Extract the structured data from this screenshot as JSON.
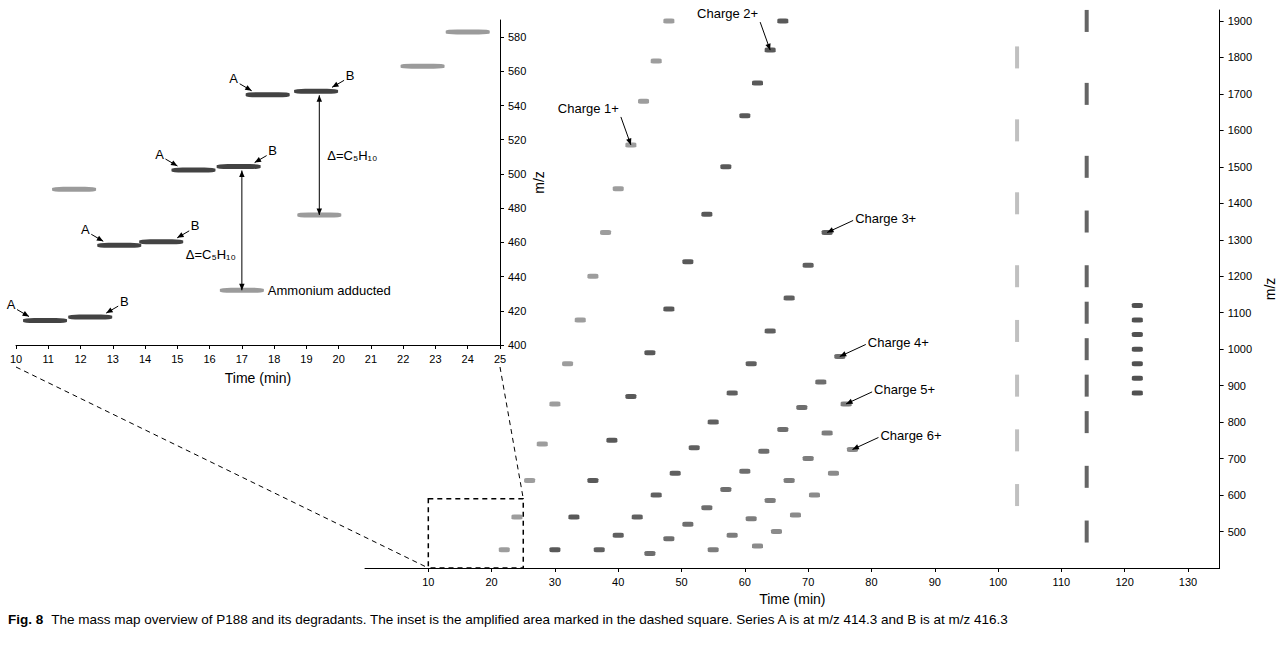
{
  "caption": {
    "label": "Fig. 8",
    "text": "The mass map overview of P188 and its degradants. The inset is the amplified area marked in the dashed square. Series A is at m/z 414.3 and B is at m/z 416.3"
  },
  "chart_data": [
    {
      "type": "scatter",
      "xlabel": "Time (min)",
      "ylabel": "m/z",
      "xlim": [
        0,
        135
      ],
      "xticks": [
        10,
        20,
        30,
        40,
        50,
        60,
        70,
        80,
        90,
        100,
        110,
        120,
        130
      ],
      "ylim": [
        400,
        1930
      ],
      "yticks": [
        500,
        600,
        700,
        800,
        900,
        1000,
        1100,
        1200,
        1300,
        1400,
        1500,
        1600,
        1700,
        1800,
        1900
      ],
      "grid": false,
      "series": [
        {
          "color": "#8c8c8c",
          "marker": "dash",
          "x": [
            22,
            24,
            26,
            28,
            30,
            32,
            34,
            36,
            38,
            40,
            42,
            44,
            46,
            48
          ],
          "values": [
            450,
            540,
            640,
            740,
            850,
            960,
            1080,
            1200,
            1320,
            1440,
            1560,
            1680,
            1790,
            1900
          ]
        },
        {
          "color": "#3c3c3c",
          "marker": "dash",
          "x": [
            30,
            33,
            36,
            39,
            42,
            45,
            48,
            51,
            54,
            57,
            60,
            62,
            64,
            66
          ],
          "values": [
            450,
            540,
            640,
            750,
            870,
            990,
            1110,
            1240,
            1370,
            1500,
            1640,
            1730,
            1820,
            1900
          ]
        },
        {
          "color": "#444444",
          "marker": "dash",
          "x": [
            37,
            40,
            43,
            46,
            49,
            52,
            55,
            58,
            61,
            64,
            67,
            70,
            73
          ],
          "values": [
            450,
            490,
            540,
            600,
            660,
            730,
            800,
            880,
            960,
            1050,
            1140,
            1230,
            1320
          ]
        },
        {
          "color": "#555555",
          "marker": "dash",
          "x": [
            45,
            48,
            51,
            54,
            57,
            60,
            63,
            66,
            69,
            72,
            75
          ],
          "values": [
            440,
            480,
            520,
            565,
            615,
            665,
            720,
            780,
            840,
            910,
            980
          ]
        },
        {
          "color": "#666666",
          "marker": "dash",
          "x": [
            55,
            58,
            61,
            64,
            67,
            70,
            73,
            76
          ],
          "values": [
            450,
            490,
            535,
            585,
            640,
            700,
            770,
            850
          ]
        },
        {
          "color": "#777777",
          "marker": "dash",
          "x": [
            62,
            65,
            68,
            71,
            74,
            77
          ],
          "values": [
            460,
            500,
            545,
            600,
            660,
            725
          ]
        },
        {
          "color": "#b5b5b5",
          "marker": "vline",
          "x": [
            103,
            103,
            103,
            103,
            103,
            103,
            103,
            103
          ],
          "values": [
            600,
            750,
            900,
            1050,
            1200,
            1400,
            1600,
            1800
          ]
        },
        {
          "color": "#4a4a4a",
          "marker": "vline",
          "x": [
            114,
            114,
            114,
            114,
            114,
            114,
            114,
            114,
            114,
            114,
            114
          ],
          "values": [
            500,
            650,
            800,
            900,
            1000,
            1100,
            1200,
            1350,
            1500,
            1700,
            1900
          ]
        },
        {
          "color": "#333333",
          "marker": "dash",
          "x": [
            122,
            122,
            122,
            122,
            122,
            122,
            122
          ],
          "values": [
            880,
            920,
            960,
            1000,
            1040,
            1080,
            1120
          ]
        }
      ],
      "annotations": [
        {
          "text": "Charge 1+",
          "x": 42,
          "y": 1560
        },
        {
          "text": "Charge 2+",
          "x": 64,
          "y": 1820
        },
        {
          "text": "Charge 3+",
          "x": 73,
          "y": 1320
        },
        {
          "text": "Charge 4+",
          "x": 75,
          "y": 980
        },
        {
          "text": "Charge 5+",
          "x": 76,
          "y": 850
        },
        {
          "text": "Charge 6+",
          "x": 77,
          "y": 725
        }
      ]
    },
    {
      "type": "scatter",
      "xlabel": "Time (min)",
      "ylabel": "m/z",
      "xlim": [
        10,
        25
      ],
      "xticks": [
        10,
        11,
        12,
        13,
        14,
        15,
        16,
        17,
        18,
        19,
        20,
        21,
        22,
        23,
        24,
        25
      ],
      "ylim": [
        400,
        590
      ],
      "yticks": [
        400,
        420,
        440,
        460,
        480,
        500,
        520,
        540,
        560,
        580
      ],
      "grid": false,
      "series": [
        {
          "name": "A",
          "color": "#222222",
          "marker": "dash",
          "x": [
            10.9,
            13.2,
            15.5,
            17.8
          ],
          "values": [
            414.3,
            458.3,
            502.3,
            546.3
          ]
        },
        {
          "name": "B",
          "color": "#222222",
          "marker": "dash",
          "x": [
            12.3,
            14.5,
            16.9,
            19.3
          ],
          "values": [
            416.3,
            460.3,
            504.3,
            548.3
          ]
        },
        {
          "color": "#8a8a8a",
          "marker": "dash",
          "x": [
            17.0,
            19.4,
            22.6,
            11.8,
            24.0
          ],
          "values": [
            432,
            476,
            563,
            491,
            583
          ]
        }
      ],
      "brackets": [
        {
          "text": "Δ=C₅H₁₀",
          "x": 17.0,
          "y": [
            432,
            502
          ]
        },
        {
          "text": "Δ=C₅H₁₀",
          "x": 19.4,
          "y": [
            476,
            546
          ]
        }
      ],
      "annotations": [
        {
          "text": "Ammonium adducted",
          "x": 17.0,
          "y": 432
        }
      ]
    }
  ]
}
